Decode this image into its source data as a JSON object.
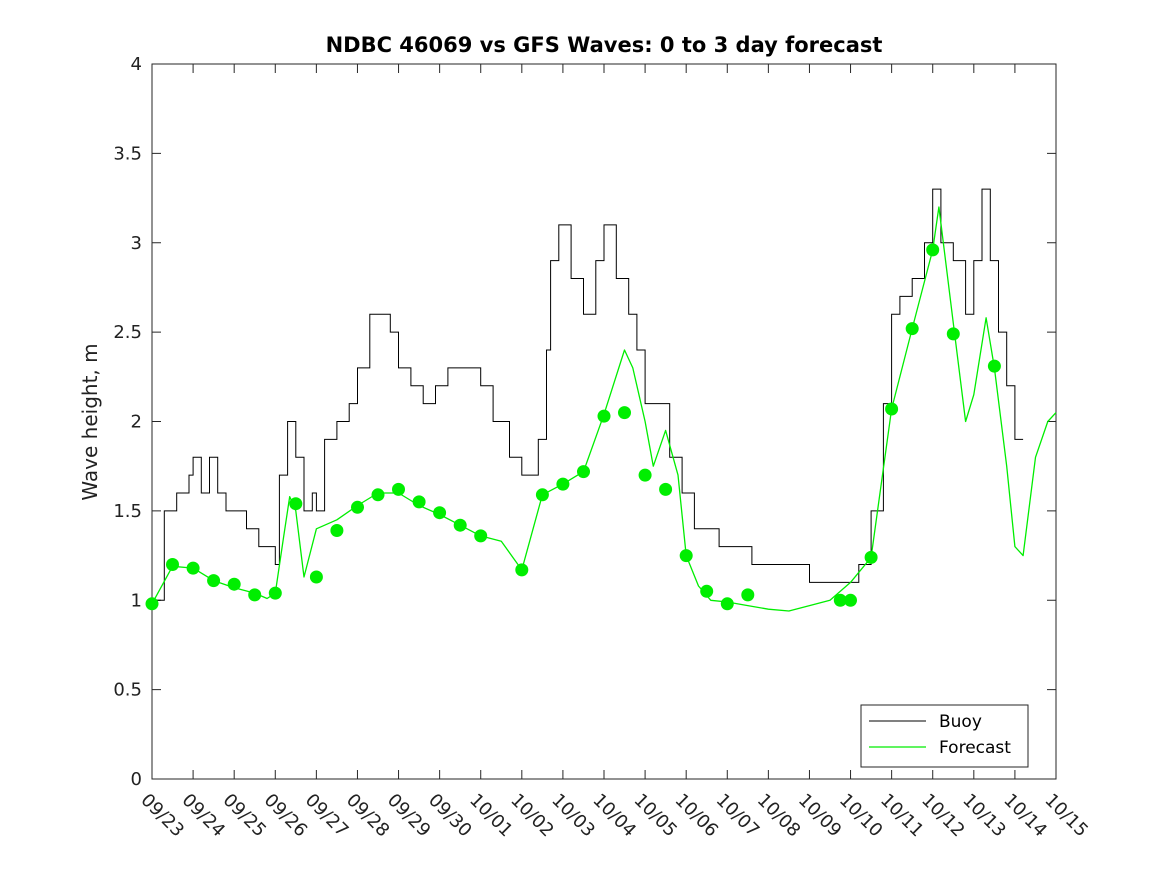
{
  "chart_data": {
    "type": "line",
    "title": "NDBC 46069 vs GFS Waves: 0 to 3 day forecast",
    "xlabel": "",
    "ylabel": "Wave height, m",
    "ylim": [
      0,
      4
    ],
    "yticks": [
      0,
      0.5,
      1,
      1.5,
      2,
      2.5,
      3,
      3.5,
      4
    ],
    "ytick_labels": [
      "0",
      "0.5",
      "1",
      "1.5",
      "2",
      "2.5",
      "3",
      "3.5",
      "4"
    ],
    "xlim_days": [
      0,
      22
    ],
    "xtick_labels": [
      "09/23",
      "09/24",
      "09/25",
      "09/26",
      "09/27",
      "09/28",
      "09/29",
      "09/30",
      "10/01",
      "10/02",
      "10/03",
      "10/04",
      "10/05",
      "10/06",
      "10/07",
      "10/08",
      "10/09",
      "10/10",
      "10/11",
      "10/12",
      "10/13",
      "10/14",
      "10/15"
    ],
    "legend": {
      "placement": "bottom-right",
      "entries": [
        "Buoy",
        "Forecast"
      ]
    },
    "colors": {
      "buoy": "#000000",
      "forecast": "#00ee00",
      "axes": "#262626"
    },
    "buoy_series": {
      "name": "Buoy",
      "x_days": [
        0,
        0.3,
        0.6,
        0.9,
        1.0,
        1.2,
        1.4,
        1.6,
        1.8,
        2.0,
        2.3,
        2.6,
        2.8,
        3.0,
        3.1,
        3.3,
        3.5,
        3.7,
        3.9,
        4.0,
        4.2,
        4.5,
        4.8,
        5.0,
        5.3,
        5.5,
        5.8,
        6.0,
        6.3,
        6.6,
        6.9,
        7.2,
        7.6,
        8.0,
        8.3,
        8.7,
        9.0,
        9.2,
        9.4,
        9.6,
        9.7,
        9.9,
        10.2,
        10.5,
        10.8,
        11.0,
        11.3,
        11.6,
        11.8,
        12.0,
        12.3,
        12.6,
        12.9,
        13.2,
        13.5,
        13.8,
        14.2,
        14.6,
        15.0,
        15.5,
        16.0,
        16.5,
        16.9,
        17.2,
        17.5,
        17.8,
        18.0,
        18.2,
        18.5,
        18.8,
        19.0,
        19.2,
        19.5,
        19.8,
        20.0,
        20.2,
        20.4,
        20.6,
        20.8,
        21.0,
        21.2
      ],
      "values": [
        1.0,
        1.5,
        1.6,
        1.7,
        1.8,
        1.6,
        1.8,
        1.6,
        1.5,
        1.5,
        1.4,
        1.3,
        1.3,
        1.2,
        1.7,
        2.0,
        1.8,
        1.5,
        1.6,
        1.5,
        1.9,
        2.0,
        2.1,
        2.3,
        2.6,
        2.6,
        2.5,
        2.3,
        2.2,
        2.1,
        2.2,
        2.3,
        2.3,
        2.2,
        2.0,
        1.8,
        1.7,
        1.7,
        1.9,
        2.4,
        2.9,
        3.1,
        2.8,
        2.6,
        2.9,
        3.1,
        2.8,
        2.6,
        2.4,
        2.1,
        2.1,
        1.8,
        1.6,
        1.4,
        1.4,
        1.3,
        1.3,
        1.2,
        1.2,
        1.2,
        1.1,
        1.1,
        1.1,
        1.2,
        1.5,
        2.1,
        2.6,
        2.7,
        2.8,
        3.0,
        3.3,
        3.0,
        2.9,
        2.6,
        2.9,
        3.3,
        2.9,
        2.5,
        2.2,
        1.9,
        1.9
      ]
    },
    "forecast_series": {
      "name": "Forecast",
      "x_days": [
        0,
        0.5,
        1.0,
        1.5,
        2.0,
        2.5,
        2.8,
        3.0,
        3.2,
        3.35,
        3.5,
        3.7,
        4.0,
        4.5,
        5.0,
        5.5,
        6.0,
        6.5,
        7.0,
        7.5,
        8.0,
        8.5,
        9.0,
        9.5,
        10.0,
        10.5,
        11.0,
        11.5,
        11.7,
        12.0,
        12.2,
        12.5,
        12.8,
        13.0,
        13.3,
        13.6,
        14.0,
        14.5,
        15.0,
        15.5,
        16.0,
        16.5,
        17.0,
        17.5,
        18.0,
        18.5,
        19.0,
        19.15,
        19.5,
        19.8,
        20.0,
        20.3,
        20.5,
        20.8,
        21.0,
        21.2,
        21.5,
        21.8,
        22.0
      ],
      "values": [
        0.98,
        1.19,
        1.18,
        1.11,
        1.07,
        1.04,
        1.01,
        1.04,
        1.35,
        1.58,
        1.5,
        1.13,
        1.4,
        1.45,
        1.53,
        1.6,
        1.6,
        1.53,
        1.48,
        1.42,
        1.36,
        1.33,
        1.17,
        1.59,
        1.65,
        1.72,
        2.04,
        2.4,
        2.3,
        2.0,
        1.75,
        1.95,
        1.7,
        1.25,
        1.08,
        1.0,
        0.99,
        0.97,
        0.95,
        0.94,
        0.97,
        1.0,
        1.1,
        1.24,
        2.07,
        2.52,
        2.96,
        3.2,
        2.55,
        2.0,
        2.15,
        2.58,
        2.3,
        1.75,
        1.3,
        1.25,
        1.8,
        2.0,
        2.05
      ]
    },
    "forecast_markers": {
      "x_days": [
        0,
        0.5,
        1.0,
        1.5,
        2.0,
        2.5,
        3.0,
        3.5,
        4.0,
        4.5,
        5.0,
        5.5,
        6.0,
        6.5,
        7.0,
        7.5,
        8.0,
        9.0,
        9.5,
        10.0,
        10.5,
        11.0,
        11.5,
        12.0,
        12.5,
        13.0,
        13.5,
        14.0,
        14.5,
        16.75,
        17.0,
        17.5,
        18.0,
        18.5,
        19.0,
        19.5,
        20.5
      ],
      "values": [
        0.98,
        1.2,
        1.18,
        1.11,
        1.09,
        1.03,
        1.04,
        1.54,
        1.13,
        1.39,
        1.52,
        1.59,
        1.62,
        1.55,
        1.49,
        1.42,
        1.36,
        1.17,
        1.59,
        1.65,
        1.72,
        2.03,
        2.05,
        1.7,
        1.62,
        1.25,
        1.05,
        0.98,
        1.03,
        1.0,
        1.0,
        1.24,
        2.07,
        2.52,
        2.96,
        2.49,
        2.31
      ]
    }
  }
}
